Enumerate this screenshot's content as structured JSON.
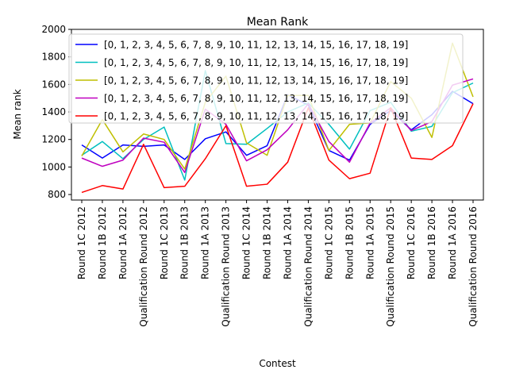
{
  "chart_data": {
    "type": "line",
    "title": "Mean Rank",
    "xlabel": "Contest",
    "ylabel": "Mean rank",
    "ylim": [
      760,
      2000
    ],
    "yticks": [
      800,
      1000,
      1200,
      1400,
      1600,
      1800,
      2000
    ],
    "grid": false,
    "legend_position": "top-left",
    "categories": [
      "Round 1C 2012",
      "Round 1B 2012",
      "Round 1A 2012",
      "Qualification Round 2012",
      "Round 1C 2013",
      "Round 1B 2013",
      "Round 1A 2013",
      "Qualification Round 2013",
      "Round 1C 2014",
      "Round 1B 2014",
      "Round 1A 2014",
      "Qualification Round 2014",
      "Round 1C 2015",
      "Round 1B 2015",
      "Round 1A 2015",
      "Qualification Round 2015",
      "Round 1C 2016",
      "Round 1B 2016",
      "Round 1A 2016",
      "Qualification Round 2016"
    ],
    "series": [
      {
        "name": "[0, 1, 2, 3, 4, 5, 6, 7, 8, 9, 10, 11, 12, 13, 14, 15, 16, 17, 18, 19]",
        "color": "#0000ff",
        "values": [
          1160,
          1065,
          1160,
          1150,
          1160,
          1055,
          1205,
          1255,
          1085,
          1155,
          1525,
          1450,
          1120,
          1050,
          1310,
          1410,
          1270,
          1380,
          1550,
          1460
        ]
      },
      {
        "name": "[0, 1, 2, 3, 4, 5, 6, 7, 8, 9, 10, 11, 12, 13, 14, 15, 16, 17, 18, 19]",
        "color": "#00bfbf",
        "values": [
          1085,
          1185,
          1060,
          1200,
          1290,
          905,
          1700,
          1170,
          1165,
          1280,
          1400,
          1465,
          1310,
          1130,
          1410,
          1470,
          1260,
          1295,
          1540,
          1610
        ]
      },
      {
        "name": "[0, 1, 2, 3, 4, 5, 6, 7, 8, 9, 10, 11, 12, 13, 14, 15, 16, 17, 18, 19]",
        "color": "#bfbf00",
        "values": [
          1080,
          1345,
          1110,
          1240,
          1200,
          985,
          1470,
          1660,
          1175,
          1085,
          1520,
          1520,
          1120,
          1310,
          1320,
          1620,
          1500,
          1215,
          1900,
          1510
        ]
      },
      {
        "name": "[0, 1, 2, 3, 4, 5, 6, 7, 8, 9, 10, 11, 12, 13, 14, 15, 16, 17, 18, 19]",
        "color": "#bf00bf",
        "values": [
          1065,
          1005,
          1050,
          1210,
          1180,
          960,
          1420,
          1310,
          1045,
          1125,
          1270,
          1460,
          1185,
          1035,
          1320,
          1430,
          1265,
          1330,
          1595,
          1640
        ]
      },
      {
        "name": "[0, 1, 2, 3, 4, 5, 6, 7, 8, 9, 10, 11, 12, 13, 14, 15, 16, 17, 18, 19]",
        "color": "#ff0000",
        "values": [
          815,
          865,
          840,
          1165,
          850,
          860,
          1060,
          1300,
          860,
          875,
          1035,
          1430,
          1050,
          915,
          955,
          1430,
          1065,
          1055,
          1155,
          1460
        ]
      }
    ]
  }
}
